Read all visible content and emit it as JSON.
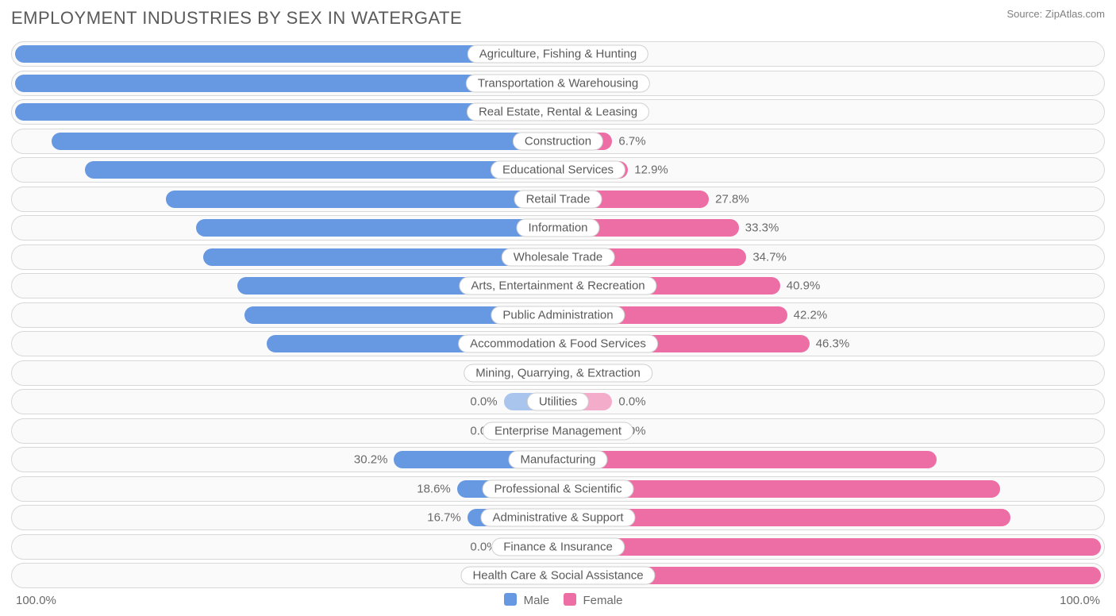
{
  "title": "EMPLOYMENT INDUSTRIES BY SEX IN WATERGATE",
  "source": "Source: ZipAtlas.com",
  "colors": {
    "male": "#6699e1",
    "female": "#ed6ea4",
    "dim_opacity": 0.55,
    "row_border": "#d8d8d8",
    "row_bg": "#fafafa",
    "text_muted": "#6a6a6a"
  },
  "legend": {
    "male_label": "Male",
    "female_label": "Female"
  },
  "axis": {
    "left": "100.0%",
    "right": "100.0%"
  },
  "min_bar_pct": 10,
  "label_inside_threshold": 50,
  "rows": [
    {
      "label": "Agriculture, Fishing & Hunting",
      "male": 100.0,
      "female": 0.0,
      "dim": false
    },
    {
      "label": "Transportation & Warehousing",
      "male": 100.0,
      "female": 0.0,
      "dim": false
    },
    {
      "label": "Real Estate, Rental & Leasing",
      "male": 100.0,
      "female": 0.0,
      "dim": false
    },
    {
      "label": "Construction",
      "male": 93.3,
      "female": 6.7,
      "dim": false
    },
    {
      "label": "Educational Services",
      "male": 87.1,
      "female": 12.9,
      "dim": false
    },
    {
      "label": "Retail Trade",
      "male": 72.2,
      "female": 27.8,
      "dim": false
    },
    {
      "label": "Information",
      "male": 66.7,
      "female": 33.3,
      "dim": false
    },
    {
      "label": "Wholesale Trade",
      "male": 65.3,
      "female": 34.7,
      "dim": false
    },
    {
      "label": "Arts, Entertainment & Recreation",
      "male": 59.1,
      "female": 40.9,
      "dim": false
    },
    {
      "label": "Public Administration",
      "male": 57.8,
      "female": 42.2,
      "dim": false
    },
    {
      "label": "Accommodation & Food Services",
      "male": 53.7,
      "female": 46.3,
      "dim": false
    },
    {
      "label": "Mining, Quarrying, & Extraction",
      "male": 0.0,
      "female": 0.0,
      "dim": true
    },
    {
      "label": "Utilities",
      "male": 0.0,
      "female": 0.0,
      "dim": true
    },
    {
      "label": "Enterprise Management",
      "male": 0.0,
      "female": 0.0,
      "dim": true
    },
    {
      "label": "Manufacturing",
      "male": 30.2,
      "female": 69.8,
      "dim": false
    },
    {
      "label": "Professional & Scientific",
      "male": 18.6,
      "female": 81.4,
      "dim": false
    },
    {
      "label": "Administrative & Support",
      "male": 16.7,
      "female": 83.3,
      "dim": false
    },
    {
      "label": "Finance & Insurance",
      "male": 0.0,
      "female": 100.0,
      "dim": false
    },
    {
      "label": "Health Care & Social Assistance",
      "male": 0.0,
      "female": 100.0,
      "dim": false
    }
  ]
}
